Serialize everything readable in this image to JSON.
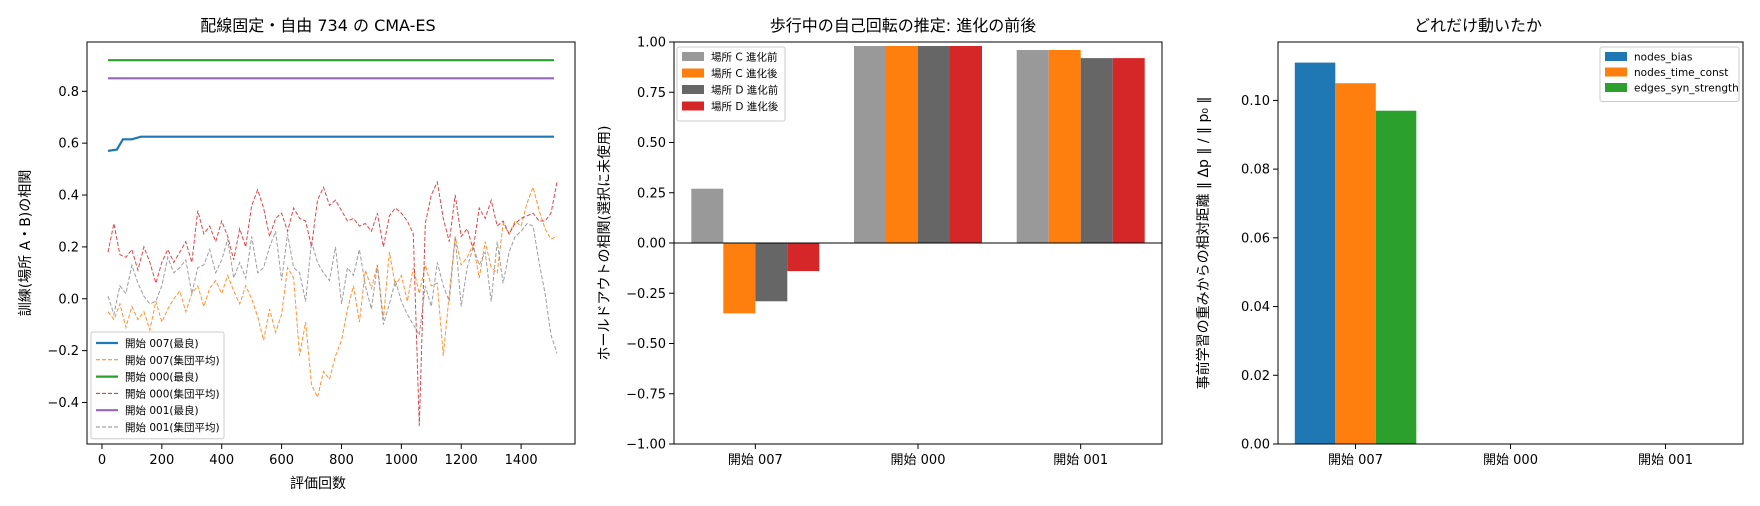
{
  "chart_data": [
    {
      "type": "line",
      "title": "配線固定・自由 734 の CMA-ES",
      "xlabel": "評価回数",
      "ylabel": "訓練(場所 A・B)の相関",
      "xlim": [
        -50,
        1580
      ],
      "ylim": [
        -0.56,
        0.99
      ],
      "xticks": [
        0,
        200,
        400,
        600,
        800,
        1000,
        1200,
        1400
      ],
      "yticks": [
        -0.4,
        -0.2,
        0.0,
        0.2,
        0.4,
        0.6,
        0.8
      ],
      "ytick_labels": [
        "−0.4",
        "−0.2",
        "0.0",
        "0.2",
        "0.4",
        "0.6",
        "0.8"
      ],
      "legend_position": "lower-left",
      "series": [
        {
          "name": "開始 007(最良)",
          "color": "#1f77b4",
          "style": "solid",
          "x": [
            20,
            50,
            70,
            100,
            130,
            1510
          ],
          "y": [
            0.57,
            0.575,
            0.615,
            0.615,
            0.625,
            0.625
          ]
        },
        {
          "name": "開始 007(集団平均)",
          "color": "#ff7f0e",
          "style": "dashed",
          "x": [
            20,
            40,
            60,
            80,
            100,
            120,
            140,
            160,
            180,
            200,
            220,
            240,
            260,
            280,
            300,
            320,
            340,
            360,
            380,
            400,
            420,
            440,
            460,
            480,
            500,
            520,
            540,
            560,
            580,
            600,
            620,
            640,
            660,
            680,
            700,
            720,
            740,
            760,
            780,
            800,
            820,
            840,
            860,
            880,
            900,
            920,
            940,
            960,
            980,
            1000,
            1020,
            1040,
            1060,
            1080,
            1100,
            1120,
            1140,
            1160,
            1180,
            1200,
            1220,
            1240,
            1260,
            1280,
            1300,
            1320,
            1340,
            1360,
            1380,
            1400,
            1420,
            1440,
            1460,
            1480,
            1500,
            1520
          ],
          "y": [
            -0.05,
            -0.08,
            -0.02,
            -0.11,
            -0.03,
            -0.08,
            -0.05,
            -0.12,
            -0.01,
            -0.09,
            -0.04,
            0.0,
            0.03,
            -0.05,
            0.02,
            0.05,
            -0.03,
            0.04,
            0.07,
            0.02,
            0.09,
            0.03,
            -0.02,
            0.05,
            0.0,
            -0.07,
            -0.16,
            -0.04,
            -0.13,
            -0.06,
            0.12,
            0.08,
            -0.22,
            -0.09,
            -0.33,
            -0.38,
            -0.28,
            -0.31,
            -0.22,
            -0.16,
            -0.04,
            0.05,
            -0.09,
            0.11,
            0.04,
            0.13,
            -0.08,
            0.18,
            0.05,
            0.09,
            -0.01,
            0.12,
            0.02,
            0.13,
            0.05,
            0.06,
            -0.22,
            0.02,
            0.24,
            0.13,
            0.16,
            0.21,
            0.08,
            0.22,
            0.12,
            0.1,
            0.29,
            0.25,
            0.3,
            0.28,
            0.37,
            0.43,
            0.34,
            0.27,
            0.23,
            0.24
          ]
        },
        {
          "name": "開始 000(最良)",
          "color": "#2ca02c",
          "style": "solid",
          "x": [
            20,
            1510
          ],
          "y": [
            0.92,
            0.92
          ]
        },
        {
          "name": "開始 000(集団平均)",
          "color": "#d62728",
          "style": "dashed",
          "x": [
            20,
            40,
            60,
            80,
            100,
            120,
            140,
            160,
            180,
            200,
            220,
            240,
            260,
            280,
            300,
            320,
            340,
            360,
            380,
            400,
            420,
            440,
            460,
            480,
            500,
            520,
            540,
            560,
            580,
            600,
            620,
            640,
            660,
            680,
            700,
            720,
            740,
            760,
            780,
            800,
            820,
            840,
            860,
            880,
            900,
            920,
            940,
            960,
            980,
            1000,
            1020,
            1040,
            1060,
            1080,
            1100,
            1120,
            1140,
            1160,
            1180,
            1200,
            1220,
            1240,
            1260,
            1280,
            1300,
            1320,
            1340,
            1360,
            1380,
            1400,
            1420,
            1440,
            1460,
            1480,
            1500,
            1520
          ],
          "y": [
            0.18,
            0.29,
            0.17,
            0.16,
            0.19,
            0.11,
            0.2,
            0.14,
            0.06,
            0.14,
            0.19,
            0.14,
            0.18,
            0.22,
            0.14,
            0.34,
            0.25,
            0.28,
            0.22,
            0.3,
            0.24,
            0.15,
            0.27,
            0.2,
            0.36,
            0.42,
            0.35,
            0.24,
            0.31,
            0.33,
            0.26,
            0.35,
            0.31,
            0.3,
            0.2,
            0.38,
            0.43,
            0.36,
            0.38,
            0.34,
            0.3,
            0.31,
            0.28,
            0.29,
            0.26,
            0.33,
            0.2,
            0.32,
            0.35,
            0.33,
            0.3,
            0.25,
            -0.49,
            0.29,
            0.4,
            0.45,
            0.31,
            0.22,
            0.4,
            0.24,
            0.27,
            0.19,
            0.35,
            0.31,
            0.38,
            0.28,
            0.3,
            0.25,
            0.29,
            0.31,
            0.32,
            0.33,
            0.3,
            0.3,
            0.33,
            0.45
          ]
        },
        {
          "name": "開始 001(最良)",
          "color": "#9467bd",
          "style": "solid",
          "x": [
            20,
            1510
          ],
          "y": [
            0.85,
            0.85
          ]
        },
        {
          "name": "開始 001(集団平均)",
          "color": "#8c8c8c",
          "style": "dashed",
          "x": [
            20,
            40,
            60,
            80,
            100,
            120,
            140,
            160,
            180,
            200,
            220,
            240,
            260,
            280,
            300,
            320,
            340,
            360,
            380,
            400,
            420,
            440,
            460,
            480,
            500,
            520,
            540,
            560,
            580,
            600,
            620,
            640,
            660,
            680,
            700,
            720,
            740,
            760,
            780,
            800,
            820,
            840,
            860,
            880,
            900,
            920,
            940,
            960,
            980,
            1000,
            1020,
            1040,
            1060,
            1080,
            1100,
            1120,
            1140,
            1160,
            1180,
            1200,
            1220,
            1240,
            1260,
            1280,
            1300,
            1320,
            1340,
            1360,
            1380,
            1400,
            1420,
            1440,
            1460,
            1480,
            1500,
            1520
          ],
          "y": [
            0.01,
            -0.06,
            0.05,
            0.02,
            0.13,
            0.06,
            0.01,
            -0.02,
            -0.01,
            0.05,
            0.16,
            0.1,
            0.12,
            0.15,
            0.02,
            0.12,
            0.13,
            0.19,
            0.1,
            0.15,
            0.23,
            0.08,
            0.14,
            0.08,
            0.24,
            0.1,
            0.12,
            0.2,
            0.26,
            0.07,
            0.25,
            0.12,
            0.1,
            -0.01,
            0.22,
            0.14,
            0.1,
            0.07,
            0.2,
            -0.02,
            0.12,
            0.09,
            0.19,
            0.05,
            -0.04,
            0.13,
            -0.1,
            -0.02,
            0.07,
            -0.01,
            -0.06,
            -0.1,
            -0.14,
            0.05,
            -0.03,
            0.14,
            0.05,
            -0.01,
            0.24,
            -0.03,
            0.12,
            0.2,
            0.13,
            0.18,
            -0.01,
            0.22,
            0.06,
            0.18,
            0.24,
            0.26,
            0.29,
            0.28,
            0.14,
            0.02,
            -0.14,
            -0.21
          ]
        }
      ]
    },
    {
      "type": "bar",
      "title": "歩行中の自己回転の推定: 進化の前後",
      "xlabel": "",
      "ylabel": "ホールドアウトの相関(選択に未使用)",
      "ylim": [
        -1.0,
        1.0
      ],
      "yticks": [
        -1.0,
        -0.75,
        -0.5,
        -0.25,
        0.0,
        0.25,
        0.5,
        0.75,
        1.0
      ],
      "ytick_labels": [
        "−1.00",
        "−0.75",
        "−0.50",
        "−0.25",
        "0.00",
        "0.25",
        "0.50",
        "0.75",
        "1.00"
      ],
      "categories": [
        "開始 007",
        "開始 000",
        "開始 001"
      ],
      "legend_position": "top-left",
      "series": [
        {
          "name": "場所 C 進化前",
          "color": "#999999",
          "values": [
            0.27,
            0.98,
            0.96
          ]
        },
        {
          "name": "場所 C 進化後",
          "color": "#ff7f0e",
          "values": [
            -0.35,
            0.98,
            0.96
          ]
        },
        {
          "name": "場所 D 進化前",
          "color": "#666666",
          "values": [
            -0.29,
            0.98,
            0.92
          ]
        },
        {
          "name": "場所 D 進化後",
          "color": "#d62728",
          "values": [
            -0.14,
            0.98,
            0.92
          ]
        }
      ]
    },
    {
      "type": "bar",
      "title": "どれだけ動いたか",
      "xlabel": "",
      "ylabel": "事前学習の重みからの相対距離 ‖ Δp ‖ / ‖ p₀ ‖",
      "ylim": [
        0.0,
        0.117
      ],
      "yticks": [
        0.0,
        0.02,
        0.04,
        0.06,
        0.08,
        0.1
      ],
      "ytick_labels": [
        "0.00",
        "0.02",
        "0.04",
        "0.06",
        "0.08",
        "0.10"
      ],
      "categories": [
        "開始 007",
        "開始 000",
        "開始 001"
      ],
      "legend_position": "top-right",
      "series": [
        {
          "name": "nodes_bias",
          "color": "#1f77b4",
          "values": [
            0.111,
            0,
            0
          ]
        },
        {
          "name": "nodes_time_const",
          "color": "#ff7f0e",
          "values": [
            0.105,
            0,
            0
          ]
        },
        {
          "name": "edges_syn_strength",
          "color": "#2ca02c",
          "values": [
            0.097,
            0,
            0
          ]
        }
      ]
    }
  ]
}
